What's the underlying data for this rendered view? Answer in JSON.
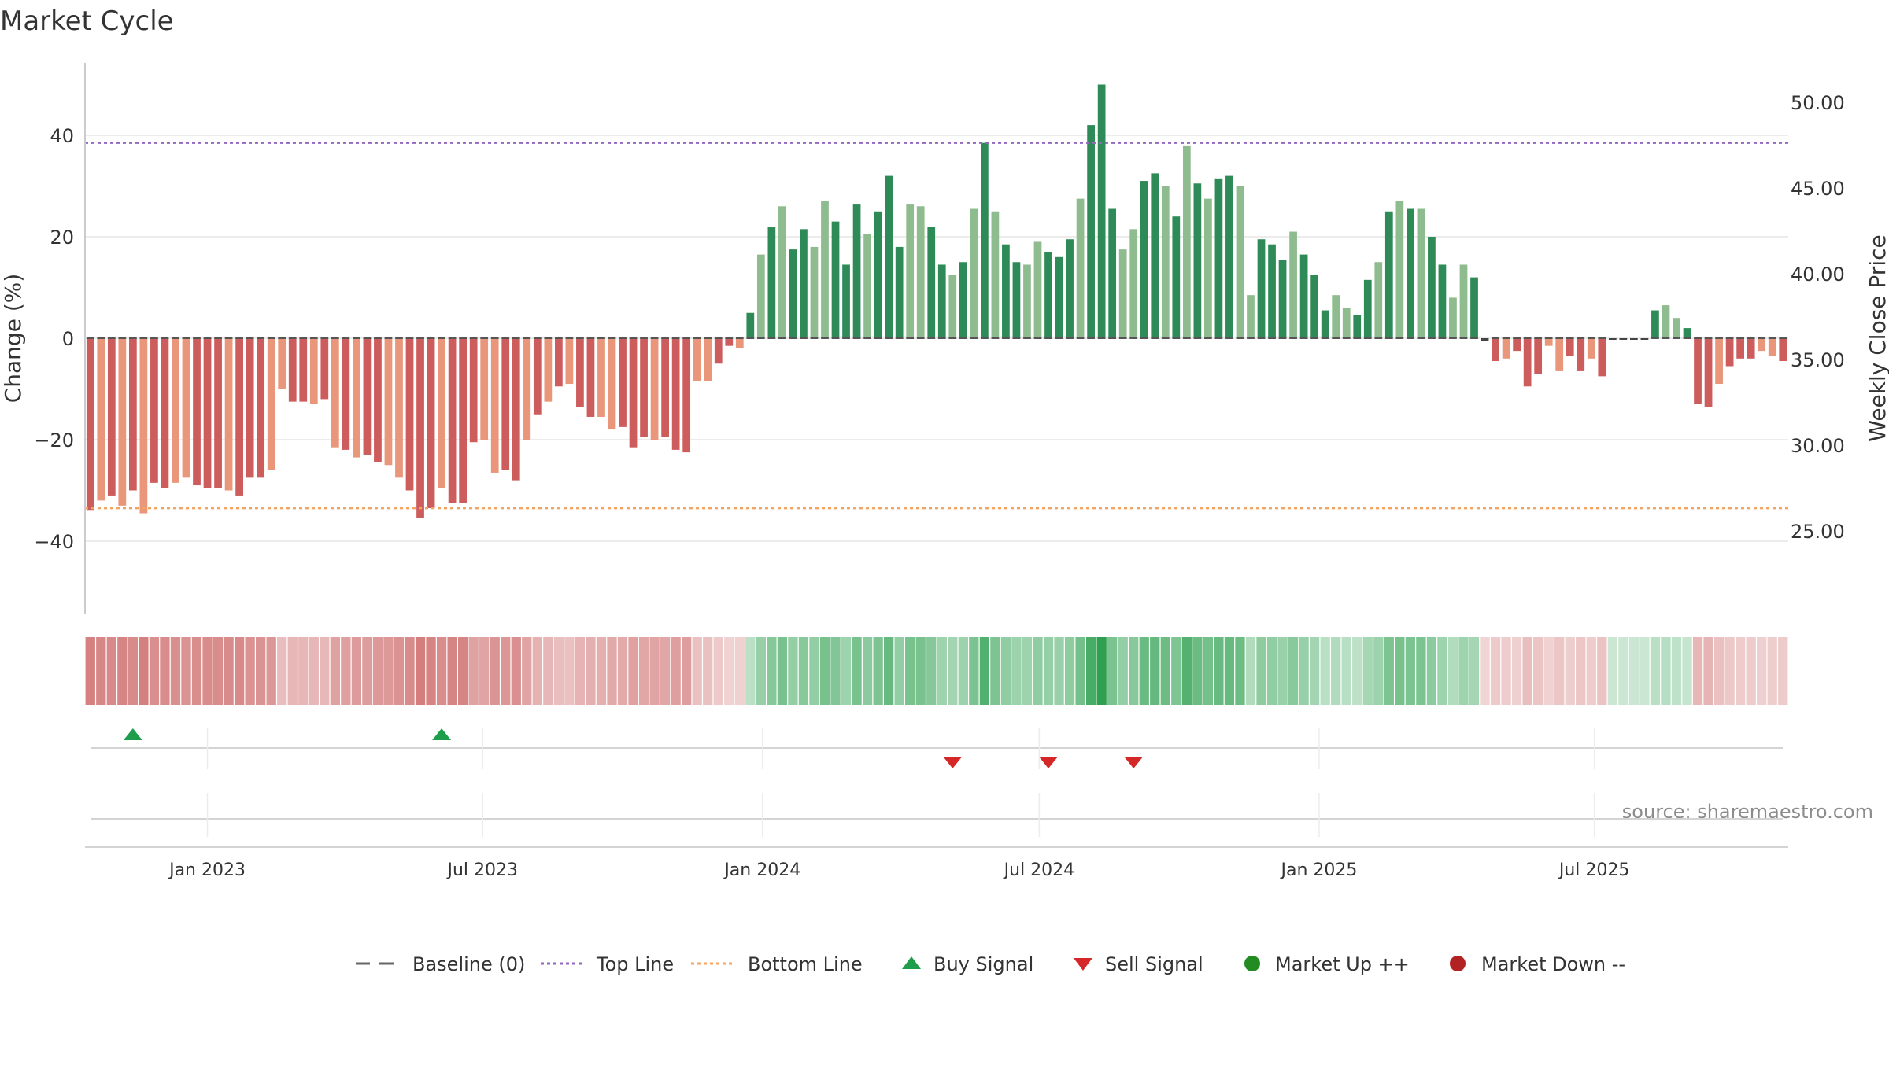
{
  "chart_data": {
    "type": "bar",
    "title": "Market Cycle",
    "ylabel": "Change (%)",
    "y2label": "Weekly Close Price",
    "ylim": [
      -54,
      55
    ],
    "y_ticks": [
      40,
      20,
      0,
      -20,
      -40
    ],
    "y_tick_labels": [
      "40",
      "20",
      "0",
      "−20",
      "−40"
    ],
    "y2lim": [
      20.0,
      52.9
    ],
    "y2_ticks": [
      50.0,
      45.0,
      40.0,
      35.0,
      30.0,
      25.0
    ],
    "y2_tick_labels": [
      "50.00",
      "45.00",
      "40.00",
      "35.00",
      "30.00",
      "25.00"
    ],
    "x_tick_labels": [
      "Jan 2023",
      "Jul 2023",
      "Jan 2024",
      "Jul 2024",
      "Jan 2025",
      "Jul 2025"
    ],
    "x_tick_dates": [
      "2023-01-01",
      "2023-07-01",
      "2024-01-01",
      "2024-07-01",
      "2025-01-01",
      "2025-07-01"
    ],
    "week_start": "2022-10-16",
    "top_line": 38.5,
    "bottom_line": -33.5,
    "baseline": 0,
    "grid": true,
    "values": [
      -34,
      -32,
      -31,
      -33,
      -30,
      -34.5,
      -28.5,
      -29.5,
      -28.5,
      -27.5,
      -29,
      -29.5,
      -29.5,
      -30,
      -31,
      -27.5,
      -27.5,
      -26,
      -10,
      -12.5,
      -12.5,
      -13,
      -12,
      -21.5,
      -22,
      -23.5,
      -23,
      -24.5,
      -25,
      -27.5,
      -30,
      -35.5,
      -33.5,
      -29.5,
      -32.5,
      -32.5,
      -20.5,
      -20,
      -26.5,
      -26,
      -28,
      -20,
      -15,
      -12.5,
      -9.5,
      -9,
      -13.5,
      -15.5,
      -15.5,
      -18,
      -17.5,
      -21.5,
      -19.5,
      -20,
      -19.5,
      -22,
      -22.5,
      -8.5,
      -8.5,
      -5,
      -1.5,
      -2,
      5,
      16.5,
      22,
      26,
      17.5,
      21.5,
      18,
      27,
      23,
      14.5,
      26.5,
      20.5,
      25,
      32,
      18,
      26.5,
      26,
      22,
      14.5,
      12.5,
      15,
      25.5,
      38.5,
      25,
      18.5,
      15,
      14.5,
      19,
      17,
      16,
      19.5,
      27.5,
      42,
      50,
      25.5,
      17.5,
      21.5,
      31,
      32.5,
      30,
      24,
      38,
      30.5,
      27.5,
      31.5,
      32,
      30,
      8.5,
      19.5,
      18.5,
      15.5,
      21,
      16.5,
      12.5,
      5.5,
      8.5,
      6,
      4.5,
      11.5,
      15,
      25,
      27,
      25.5,
      25.5,
      20,
      14.5,
      8,
      14.5,
      12,
      -0.5,
      -4.5,
      -4,
      -2.5,
      -9.5,
      -7,
      -1.5,
      -6.5,
      -3.5,
      -6.5,
      -4,
      -7.5,
      0,
      0,
      0,
      0,
      5.5,
      6.5,
      4,
      2,
      -13,
      -13.5,
      -9,
      -5.5,
      -4,
      -4,
      -2.5,
      -3.5,
      -4.5
    ],
    "price": [],
    "buy_signals": [
      "2022-11-13",
      "2023-06-04"
    ],
    "sell_signals": [
      "2024-05-05",
      "2024-07-07",
      "2024-09-01"
    ],
    "legend": {
      "position": "bottom-center",
      "items": [
        {
          "label": "Baseline (0)",
          "symbol": "dash",
          "color": "#666666"
        },
        {
          "label": "Top Line",
          "symbol": "dot-line",
          "color": "#9467bd"
        },
        {
          "label": "Bottom Line",
          "symbol": "dot-line",
          "color": "#f4a460"
        },
        {
          "label": "Buy Signal",
          "symbol": "triangle-up",
          "color": "#1e9e4a"
        },
        {
          "label": "Sell Signal",
          "symbol": "triangle-down",
          "color": "#d62728"
        },
        {
          "label": "Market Up ++",
          "symbol": "circle",
          "color": "#228b22"
        },
        {
          "label": "Market Down --",
          "symbol": "circle",
          "color": "#b22222"
        }
      ]
    },
    "source": "source: sharemaestro.com"
  },
  "colors": {
    "strong_down": "#cd5c5c",
    "weak_down": "#e9967a",
    "strong_up": "#2e8b57",
    "weak_up": "#8fbc8f",
    "top_line": "#9467bd",
    "bottom_line": "#f4a460",
    "buy": "#1e9e4a",
    "sell": "#d62728",
    "grid": "#e6e6e6"
  }
}
